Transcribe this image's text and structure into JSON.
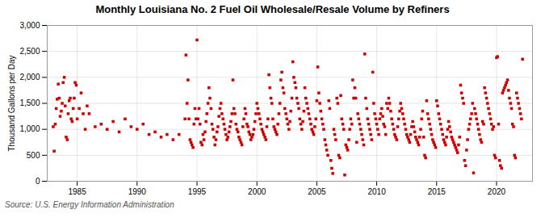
{
  "chart_data": {
    "type": "scatter",
    "title": "Monthly Louisiana No. 2 Fuel Oil Wholesale/Resale Volume by Refiners",
    "ylabel": "Thousand Gallons per Day",
    "annotation": "Source: U.S. Energy Information Administration",
    "color": "#cc0000",
    "marker": "square",
    "grid": true,
    "xlim": [
      1982.5,
      2023.0
    ],
    "xticks": [
      1985,
      1990,
      1995,
      2000,
      2005,
      2010,
      2015,
      2020
    ],
    "ylim": [
      0,
      3000
    ],
    "yticks": [
      0,
      500,
      {
        "value": 1000,
        "label": "1,000"
      },
      {
        "value": 1500,
        "label": "1,500"
      },
      {
        "value": 2000,
        "label": "2,000"
      },
      {
        "value": 2500,
        "label": "2,500"
      },
      {
        "value": 3000,
        "label": "3,000"
      }
    ],
    "x": [
      1983.0,
      1983.08,
      1983.17,
      1983.25,
      1983.33,
      1983.42,
      1983.5,
      1983.58,
      1983.67,
      1983.75,
      1983.83,
      1983.92,
      1984.0,
      1984.08,
      1984.17,
      1984.25,
      1984.33,
      1984.42,
      1984.5,
      1984.58,
      1984.67,
      1984.75,
      1984.83,
      1984.92,
      1985.0,
      1985.17,
      1985.33,
      1985.5,
      1985.67,
      1985.83,
      1986.0,
      1986.5,
      1987.0,
      1987.5,
      1988.0,
      1988.5,
      1989.0,
      1989.5,
      1990.0,
      1990.5,
      1991.0,
      1991.5,
      1992.0,
      1992.5,
      1993.0,
      1993.5,
      1994.0,
      1994.08,
      1994.17,
      1994.25,
      1994.33,
      1994.42,
      1994.5,
      1994.58,
      1994.67,
      1994.75,
      1994.83,
      1994.92,
      1995.0,
      1995.08,
      1995.17,
      1995.25,
      1995.33,
      1995.42,
      1995.5,
      1995.58,
      1995.67,
      1995.75,
      1995.83,
      1995.92,
      1996.0,
      1996.08,
      1996.17,
      1996.25,
      1996.33,
      1996.42,
      1996.5,
      1996.58,
      1996.67,
      1996.75,
      1996.83,
      1996.92,
      1997.0,
      1997.08,
      1997.17,
      1997.25,
      1997.33,
      1997.42,
      1997.5,
      1997.58,
      1997.67,
      1997.75,
      1997.83,
      1997.92,
      1998.0,
      1998.08,
      1998.17,
      1998.25,
      1998.33,
      1998.42,
      1998.5,
      1998.58,
      1998.67,
      1998.75,
      1998.83,
      1998.92,
      1999.0,
      1999.08,
      1999.17,
      1999.25,
      1999.33,
      1999.42,
      1999.5,
      1999.58,
      1999.67,
      1999.75,
      1999.83,
      1999.92,
      2000.0,
      2000.08,
      2000.17,
      2000.25,
      2000.33,
      2000.42,
      2000.5,
      2000.58,
      2000.67,
      2000.75,
      2000.83,
      2000.92,
      2001.0,
      2001.08,
      2001.17,
      2001.25,
      2001.33,
      2001.42,
      2001.5,
      2001.58,
      2001.67,
      2001.75,
      2001.83,
      2001.92,
      2002.0,
      2002.08,
      2002.17,
      2002.25,
      2002.33,
      2002.42,
      2002.5,
      2002.58,
      2002.67,
      2002.75,
      2002.83,
      2002.92,
      2003.0,
      2003.08,
      2003.17,
      2003.25,
      2003.33,
      2003.42,
      2003.5,
      2003.58,
      2003.67,
      2003.75,
      2003.83,
      2003.92,
      2004.0,
      2004.08,
      2004.17,
      2004.25,
      2004.33,
      2004.42,
      2004.5,
      2004.58,
      2004.67,
      2004.75,
      2004.83,
      2004.92,
      2005.0,
      2005.08,
      2005.17,
      2005.25,
      2005.33,
      2005.42,
      2005.5,
      2005.58,
      2005.67,
      2005.75,
      2005.83,
      2005.92,
      2006.0,
      2006.08,
      2006.17,
      2006.25,
      2006.33,
      2006.42,
      2006.5,
      2006.58,
      2006.67,
      2006.75,
      2006.83,
      2006.92,
      2007.0,
      2007.08,
      2007.17,
      2007.25,
      2007.33,
      2007.42,
      2007.5,
      2007.58,
      2007.67,
      2007.75,
      2007.83,
      2007.92,
      2008.0,
      2008.08,
      2008.17,
      2008.25,
      2008.33,
      2008.42,
      2008.5,
      2008.58,
      2008.67,
      2008.75,
      2008.83,
      2008.92,
      2009.0,
      2009.08,
      2009.17,
      2009.25,
      2009.33,
      2009.42,
      2009.5,
      2009.58,
      2009.67,
      2009.75,
      2009.83,
      2009.92,
      2010.0,
      2010.08,
      2010.17,
      2010.25,
      2010.33,
      2010.42,
      2010.5,
      2010.58,
      2010.67,
      2010.75,
      2010.83,
      2010.92,
      2011.0,
      2011.08,
      2011.17,
      2011.25,
      2011.33,
      2011.42,
      2011.5,
      2011.58,
      2011.67,
      2011.75,
      2011.83,
      2011.92,
      2012.0,
      2012.08,
      2012.17,
      2012.25,
      2012.33,
      2012.42,
      2012.5,
      2012.58,
      2012.67,
      2012.75,
      2012.83,
      2012.92,
      2013.0,
      2013.08,
      2013.17,
      2013.25,
      2013.33,
      2013.42,
      2013.5,
      2013.58,
      2013.67,
      2013.75,
      2013.83,
      2013.92,
      2014.0,
      2014.08,
      2014.17,
      2014.25,
      2014.33,
      2014.42,
      2014.5,
      2014.58,
      2014.67,
      2014.75,
      2014.83,
      2014.92,
      2015.0,
      2015.08,
      2015.17,
      2015.25,
      2015.33,
      2015.42,
      2015.5,
      2015.58,
      2015.67,
      2015.75,
      2015.83,
      2015.92,
      2016.0,
      2016.08,
      2016.17,
      2016.25,
      2016.33,
      2016.42,
      2016.5,
      2016.58,
      2016.67,
      2016.75,
      2016.83,
      2016.92,
      2017.0,
      2017.08,
      2017.17,
      2017.25,
      2017.33,
      2017.42,
      2017.5,
      2017.58,
      2017.67,
      2017.75,
      2017.83,
      2017.92,
      2018.0,
      2018.08,
      2018.17,
      2018.25,
      2018.33,
      2018.42,
      2018.5,
      2018.58,
      2018.67,
      2018.75,
      2018.83,
      2018.92,
      2019.0,
      2019.08,
      2019.17,
      2019.25,
      2019.33,
      2019.42,
      2019.5,
      2019.58,
      2019.67,
      2019.75,
      2019.83,
      2019.92,
      2020.0,
      2020.08,
      2020.17,
      2020.25,
      2020.33,
      2020.42,
      2020.5,
      2020.58,
      2020.67,
      2020.75,
      2020.83,
      2020.92,
      2021.0,
      2021.08,
      2021.17,
      2021.25,
      2021.33,
      2021.42,
      2021.5,
      2021.58,
      2021.67,
      2021.75,
      2021.83,
      2021.92,
      2022.0,
      2022.08,
      2022.17
    ],
    "values": [
      1050,
      580,
      1100,
      1400,
      1580,
      1870,
      1600,
      1250,
      1350,
      1500,
      1900,
      2000,
      1450,
      850,
      800,
      1300,
      1550,
      1600,
      1200,
      1150,
      1400,
      1600,
      1900,
      1850,
      1200,
      1400,
      1700,
      1300,
      1000,
      1450,
      1300,
      1050,
      1100,
      1000,
      1150,
      950,
      1200,
      1050,
      1000,
      1100,
      900,
      950,
      850,
      900,
      800,
      900,
      1200,
      2430,
      1500,
      1950,
      1200,
      800,
      750,
      700,
      650,
      1100,
      1400,
      1200,
      2720,
      1200,
      1400,
      1100,
      750,
      700,
      900,
      800,
      950,
      1150,
      1300,
      1500,
      1800,
      1600,
      1400,
      1100,
      1000,
      850,
      700,
      800,
      950,
      1050,
      1250,
      1400,
      1500,
      1300,
      1200,
      1100,
      1000,
      900,
      800,
      850,
      950,
      1050,
      1150,
      1300,
      1950,
      1400,
      1300,
      1100,
      1000,
      950,
      850,
      800,
      750,
      700,
      1050,
      1200,
      1400,
      1300,
      1100,
      1050,
      950,
      900,
      800,
      850,
      900,
      1000,
      1150,
      1300,
      1500,
      1400,
      1300,
      1200,
      1100,
      1000,
      950,
      900,
      850,
      800,
      1050,
      1200,
      2050,
      1800,
      1600,
      1500,
      1200,
      1050,
      1000,
      950,
      900,
      1100,
      1300,
      1500,
      1950,
      2100,
      1800,
      1700,
      1400,
      1300,
      1200,
      1100,
      1000,
      1150,
      1350,
      1600,
      2300,
      2000,
      1900,
      1800,
      1600,
      1500,
      1400,
      1200,
      1100,
      1000,
      1150,
      1350,
      1800,
      1600,
      1500,
      1400,
      1300,
      1200,
      1100,
      1000,
      950,
      900,
      1050,
      1200,
      1550,
      2200,
      1700,
      1500,
      1350,
      1200,
      1100,
      1000,
      800,
      700,
      600,
      500,
      1550,
      1400,
      400,
      250,
      150,
      1000,
      900,
      800,
      1600,
      1500,
      500,
      450,
      1650,
      1200,
      1100,
      1000,
      120,
      700,
      650,
      600,
      800,
      1000,
      1200,
      1100,
      1950,
      1600,
      1800,
      1600,
      750,
      1300,
      1200,
      1100,
      1000,
      900,
      800,
      700,
      2450,
      1600,
      1400,
      1200,
      1100,
      1000,
      900,
      800,
      2100,
      1500,
      1300,
      1200,
      1100,
      1000,
      900,
      1200,
      1300,
      1400,
      1250,
      1100,
      1050,
      900,
      1500,
      1400,
      1600,
      1500,
      1350,
      1200,
      1100,
      1000,
      900,
      850,
      800,
      1050,
      1200,
      1350,
      1500,
      1400,
      1300,
      1200,
      1100,
      1000,
      900,
      850,
      800,
      750,
      900,
      1050,
      1150,
      1050,
      950,
      850,
      800,
      750,
      700,
      850,
      1000,
      1200,
      1350,
      850,
      500,
      450,
      1550,
      1300,
      1200,
      1100,
      1000,
      900,
      800,
      750,
      700,
      650,
      1550,
      1450,
      1300,
      1200,
      1100,
      1000,
      900,
      800,
      750,
      700,
      850,
      1000,
      1150,
      1050,
      950,
      850,
      800,
      750,
      700,
      650,
      600,
      550,
      700,
      850,
      1850,
      1700,
      1600,
      1500,
      400,
      300,
      600,
      800,
      1000,
      1100,
      1200,
      1300,
      1500,
      160,
      1400,
      1300,
      1200,
      1100,
      1000,
      900,
      800,
      750,
      1150,
      1100,
      1800,
      1700,
      1600,
      1500,
      1400,
      1300,
      1200,
      1100,
      1000,
      1050,
      500,
      450,
      2380,
      2400,
      1100,
      400,
      300,
      250,
      1700,
      1750,
      1800,
      1850,
      1900,
      1950,
      1750,
      1600,
      1500,
      1400,
      1100,
      1050,
      500,
      450,
      1700,
      1600,
      1500,
      1400,
      1300,
      1200,
      2350
    ]
  }
}
